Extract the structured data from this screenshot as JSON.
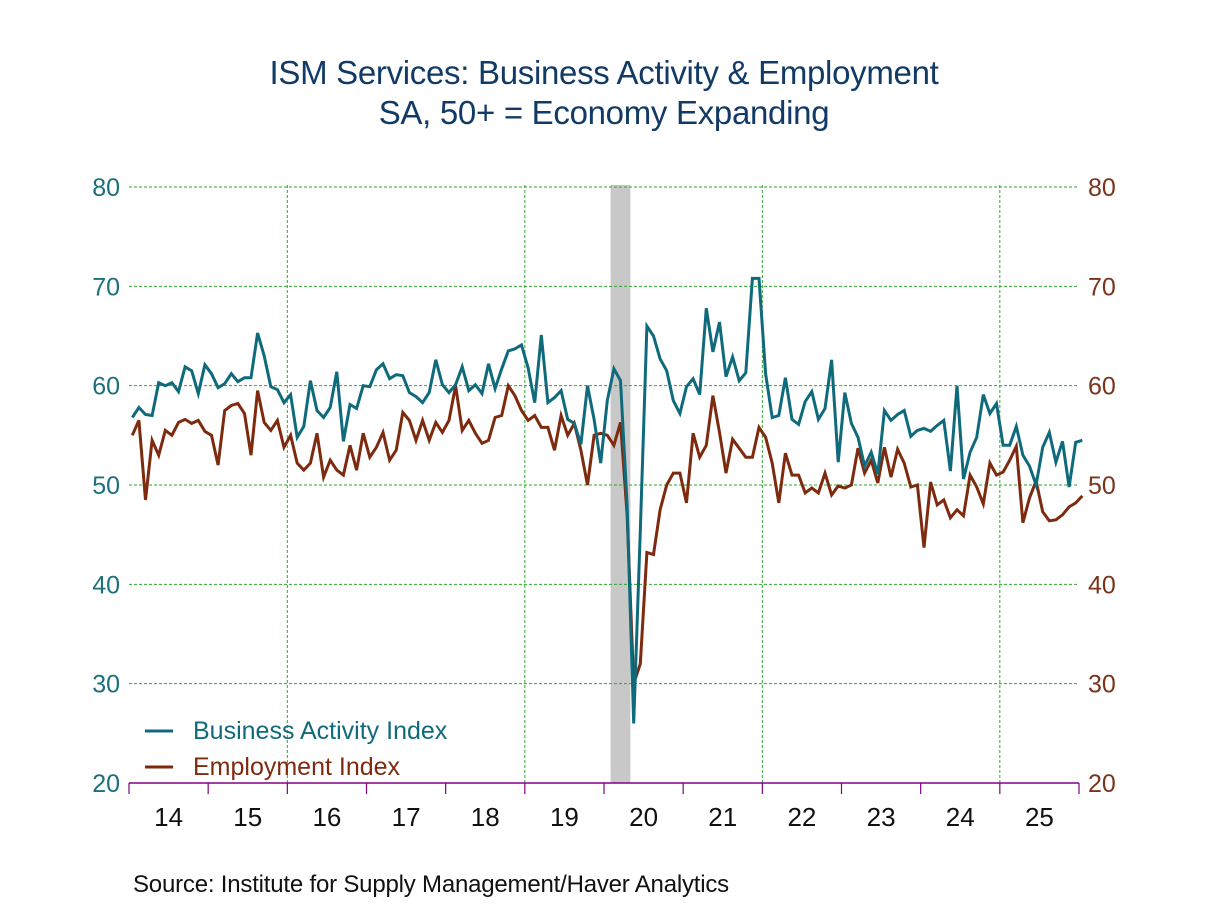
{
  "chart_data": {
    "type": "line",
    "title": "ISM Services: Business Activity & Employment",
    "subtitle": "SA, 50+ = Economy Expanding",
    "xlabel": "",
    "ylabel_left": "",
    "ylabel_right": "",
    "ylim": [
      20,
      80
    ],
    "yticks": [
      20,
      30,
      40,
      50,
      60,
      70,
      80
    ],
    "x_start": "2014-01",
    "frequency": "monthly",
    "x_tick_labels": [
      "14",
      "15",
      "16",
      "17",
      "18",
      "19",
      "20",
      "21",
      "22",
      "23",
      "24",
      "25"
    ],
    "grid": true,
    "legend_position": "bottom-left",
    "recession_shading": {
      "start": "2020-02",
      "end": "2020-04"
    },
    "source": "Source:  Institute for Supply Management/Haver Analytics",
    "colors": {
      "business_activity": "#0f6b7b",
      "employment": "#7d2a0e",
      "title": "#123a66",
      "left_axis": "#1c6f7c",
      "right_axis": "#7a341a",
      "x_axis": "#800080",
      "grid": "#2eaa2e",
      "recession": "#c8c8c8",
      "x_tick_labels": "#111111"
    },
    "series": [
      {
        "name": "Business Activity Index",
        "axis": "left",
        "values": [
          56.8,
          57.8,
          57.1,
          57.0,
          60.3,
          60.0,
          60.3,
          59.4,
          61.9,
          61.5,
          59.2,
          62.1,
          61.2,
          59.8,
          60.2,
          61.2,
          60.4,
          60.8,
          60.8,
          65.3,
          63.0,
          59.9,
          59.6,
          58.3,
          59.1,
          54.8,
          55.9,
          60.5,
          57.5,
          56.8,
          57.8,
          61.4,
          54.4,
          58.1,
          57.7,
          60.0,
          59.9,
          61.6,
          62.2,
          60.7,
          61.1,
          61.0,
          59.3,
          58.9,
          58.3,
          59.3,
          62.6,
          60.1,
          59.3,
          60.1,
          61.9,
          59.5,
          60.1,
          59.2,
          62.2,
          59.7,
          61.7,
          63.5,
          63.7,
          64.1,
          61.8,
          58.3,
          65.1,
          58.3,
          58.8,
          59.5,
          56.6,
          56.2,
          54.1,
          60.0,
          56.6,
          52.2,
          58.5,
          61.7,
          60.5,
          48.0,
          26.0,
          45.4,
          66.0,
          65.0,
          62.7,
          61.5,
          58.5,
          57.2,
          59.9,
          60.7,
          59.1,
          67.8,
          63.4,
          66.4,
          60.9,
          62.9,
          60.5,
          61.3,
          70.8,
          70.8,
          61.2,
          56.8,
          57.0,
          60.8,
          56.6,
          56.1,
          58.4,
          59.4,
          56.6,
          57.7,
          62.6,
          52.3,
          59.3,
          56.2,
          54.8,
          51.9,
          53.3,
          51.1,
          57.5,
          56.5,
          57.1,
          57.5,
          54.9,
          55.5,
          55.7,
          55.4,
          56.0,
          56.5,
          51.4,
          60.0,
          50.6,
          53.3,
          54.8,
          59.1,
          57.2,
          58.2,
          54.0,
          54.0,
          55.9,
          53.0,
          51.9,
          50.0,
          53.8,
          55.3,
          52.3,
          54.4,
          49.8,
          54.3,
          54.5
        ]
      },
      {
        "name": "Employment Index",
        "axis": "right",
        "values": [
          55.0,
          56.5,
          48.5,
          54.5,
          53.0,
          55.5,
          55.0,
          56.3,
          56.6,
          56.2,
          56.5,
          55.4,
          55.0,
          52.0,
          57.5,
          58.0,
          58.2,
          57.2,
          53.0,
          59.5,
          56.3,
          55.5,
          56.5,
          53.8,
          55.0,
          52.2,
          51.5,
          52.2,
          55.2,
          50.8,
          52.5,
          51.5,
          51.0,
          54.0,
          51.5,
          55.2,
          52.8,
          53.8,
          55.3,
          52.5,
          53.5,
          57.3,
          56.5,
          54.5,
          56.5,
          54.5,
          56.3,
          55.3,
          56.5,
          60.0,
          55.5,
          56.5,
          55.2,
          54.2,
          54.5,
          56.8,
          57.0,
          60.0,
          59.0,
          57.5,
          56.5,
          57.0,
          55.8,
          55.8,
          53.5,
          57.0,
          55.0,
          56.2,
          53.5,
          50.0,
          55.0,
          55.2,
          55.0,
          54.0,
          56.3,
          47.0,
          30.0,
          32.0,
          43.2,
          43.0,
          47.5,
          50.0,
          51.2,
          51.2,
          48.2,
          55.2,
          52.8,
          54.0,
          59.0,
          55.3,
          51.2,
          54.6,
          53.7,
          52.8,
          52.8,
          55.8,
          54.8,
          52.2,
          48.2,
          53.2,
          51.0,
          51.0,
          49.2,
          49.7,
          49.2,
          51.2,
          49.0,
          49.9,
          49.7,
          50.0,
          53.7,
          51.2,
          52.5,
          50.2,
          53.8,
          50.8,
          53.6,
          52.2,
          49.8,
          50.0,
          43.7,
          50.3,
          48.0,
          48.5,
          46.7,
          47.5,
          46.9,
          51.0,
          49.8,
          48.1,
          52.2,
          51.0,
          51.3,
          52.5,
          53.9,
          46.2,
          48.7,
          50.4,
          47.3,
          46.4,
          46.5,
          47.0,
          47.8,
          48.2,
          48.9
        ]
      }
    ]
  }
}
